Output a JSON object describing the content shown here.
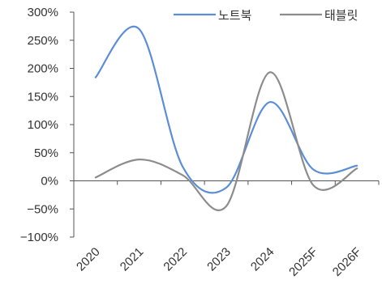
{
  "chart_data": {
    "type": "line",
    "title": "",
    "xlabel": "",
    "ylabel": "",
    "categories": [
      "2020",
      "2021",
      "2022",
      "2023",
      "2024",
      "2025F",
      "2026F"
    ],
    "y_tick_labels": [
      "300%",
      "250%",
      "200%",
      "150%",
      "100%",
      "50%",
      "0%",
      "−50%",
      "−100%"
    ],
    "y_ticks": [
      300,
      250,
      200,
      150,
      100,
      50,
      0,
      -50,
      -100
    ],
    "ylim": [
      -100,
      300
    ],
    "grid": false,
    "legend_position": "top-right",
    "series": [
      {
        "name": "노트북",
        "color": "#5B8ED6",
        "values": [
          184,
          270,
          25,
          -12,
          140,
          20,
          27
        ]
      },
      {
        "name": "태블릿",
        "color": "#8C8C8C",
        "values": [
          6,
          38,
          10,
          -45,
          193,
          -8,
          22
        ]
      }
    ]
  }
}
